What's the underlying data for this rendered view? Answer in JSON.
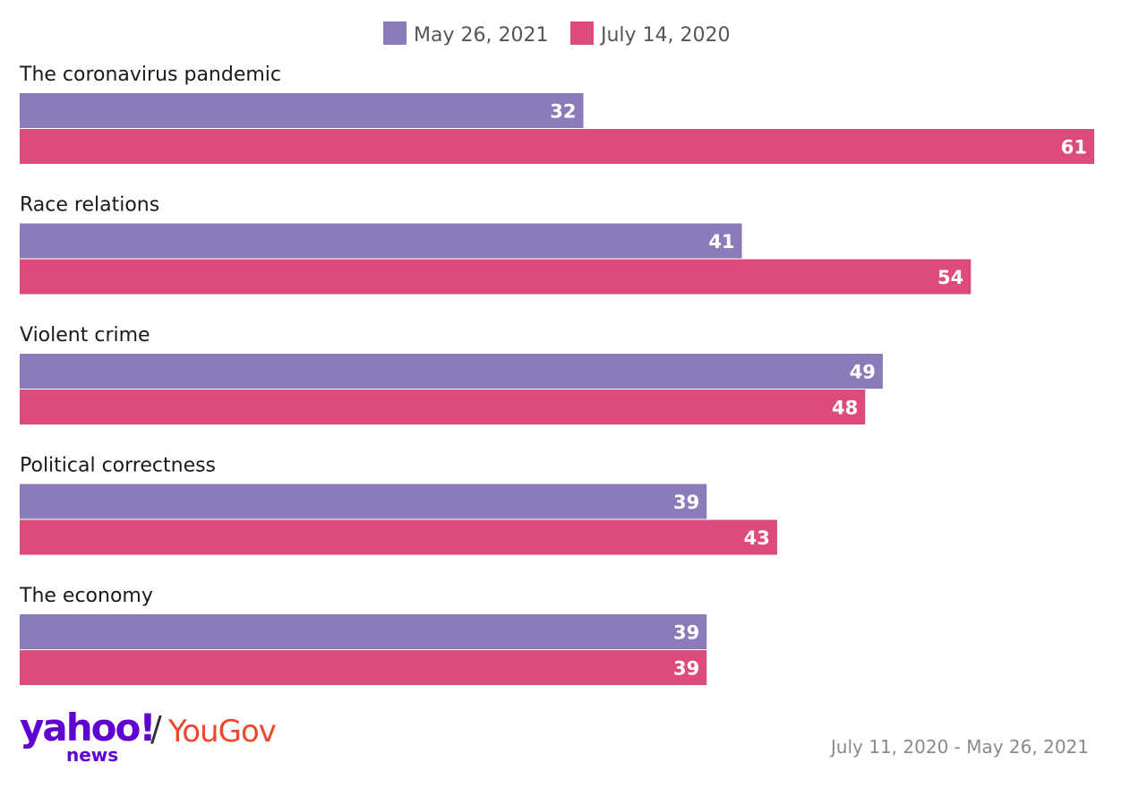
{
  "chart_data": {
    "type": "bar",
    "orientation": "horizontal",
    "categories": [
      "The coronavirus pandemic",
      "Race relations",
      "Violent crime",
      "Political correctness",
      "The economy"
    ],
    "series": [
      {
        "name": "May 26, 2021",
        "values": [
          32,
          41,
          49,
          39,
          39
        ],
        "color": "#8b7bb8"
      },
      {
        "name": "July 14, 2020",
        "values": [
          61,
          54,
          48,
          43,
          39
        ],
        "color": "#dd4a7e"
      }
    ],
    "xlim": [
      0,
      61
    ],
    "legend_position": "top-center",
    "grid": false
  },
  "branding": {
    "yahoo": "yahoo!",
    "news": "news",
    "slash": "/",
    "yougov": "YouGov",
    "date_range": "July 11, 2020 - May 26, 2021"
  }
}
